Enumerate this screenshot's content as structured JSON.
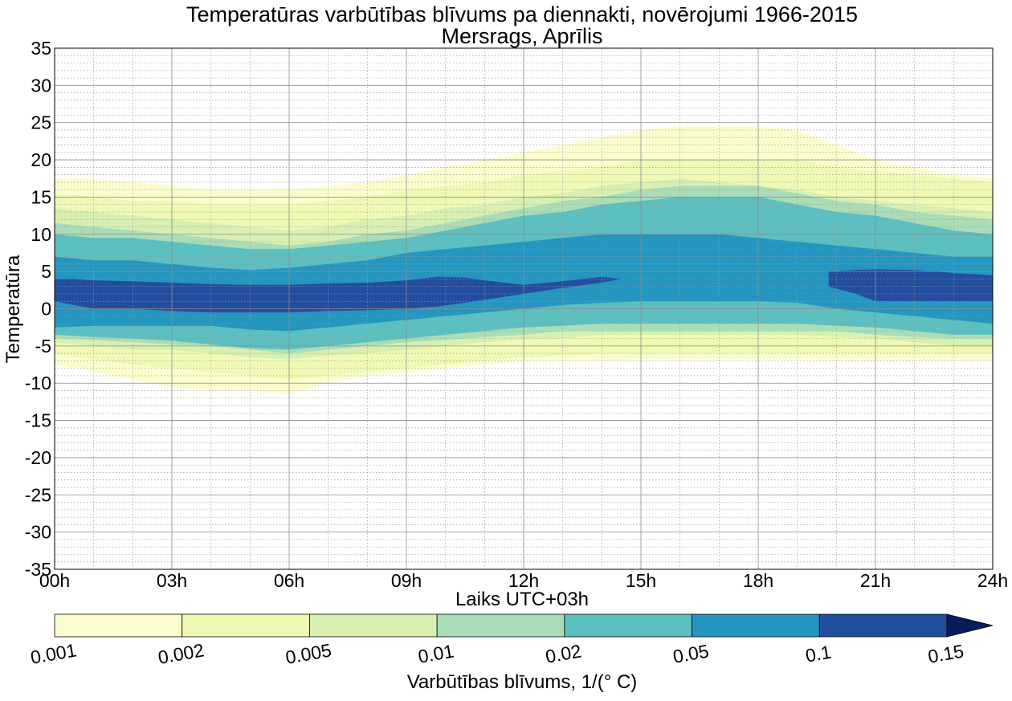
{
  "chart_data": {
    "type": "contour",
    "title": "Temperatūras varbūtības blīvums pa diennakti, novērojumi 1966-2015",
    "subtitle": "Mersrags, Aprīlis",
    "xlabel": "Laiks UTC+03h",
    "ylabel": "Temperatūra",
    "xlim": [
      0,
      24
    ],
    "ylim": [
      -35,
      35
    ],
    "x_ticks": [
      0,
      3,
      6,
      9,
      12,
      15,
      18,
      21,
      24
    ],
    "x_tick_labels": [
      "00h",
      "03h",
      "06h",
      "09h",
      "12h",
      "15h",
      "18h",
      "21h",
      "24h"
    ],
    "y_ticks": [
      -35,
      -30,
      -25,
      -20,
      -15,
      -10,
      -5,
      0,
      5,
      10,
      15,
      20,
      25,
      30,
      35
    ],
    "y_tick_labels": [
      "-35",
      "-30",
      "-25",
      "-20",
      "-15",
      "-10",
      "-5",
      "0",
      "5",
      "10",
      "15",
      "20",
      "25",
      "30",
      "35"
    ],
    "grid": "on",
    "colorbar": {
      "label": "Varbūtības blīvums, 1/($^\\circ$C)",
      "label_display": "Varbūtības blīvums, 1/(° C)",
      "levels": [
        0.001,
        0.002,
        0.005,
        0.01,
        0.02,
        0.05,
        0.1,
        0.15
      ],
      "tick_labels": [
        "0.001",
        "0.002",
        "0.005",
        "0.01",
        "0.02",
        "0.05",
        "0.1",
        "0.15"
      ],
      "colors": [
        "#fbfdcd",
        "#eff9b3",
        "#d7f0b1",
        "#a9ddb7",
        "#5cbfc0",
        "#2496c0",
        "#234ea0",
        "#081d58"
      ],
      "extend": "max"
    },
    "bands": [
      {
        "level": 0.001,
        "color": "#fbfdcd",
        "x": [
          0,
          1,
          2,
          3,
          4,
          5,
          6,
          7,
          8,
          9,
          10,
          11,
          12,
          13,
          14,
          15,
          16,
          17,
          18,
          19,
          20,
          21,
          22,
          23,
          24
        ],
        "upper": [
          17.5,
          17.5,
          17,
          16.5,
          16,
          16,
          16,
          16.5,
          17,
          18,
          19,
          20,
          21,
          22,
          23,
          24,
          24.5,
          24.5,
          24.5,
          24,
          22,
          20,
          19,
          18,
          17.5
        ],
        "lower": [
          -7.5,
          -8.5,
          -9.5,
          -10.5,
          -11,
          -11,
          -11.5,
          -10,
          -9,
          -8.5,
          -8,
          -7.5,
          -7,
          -7,
          -7,
          -6.8,
          -6.8,
          -6.8,
          -6.8,
          -6.8,
          -7,
          -7,
          -7,
          -7,
          -7
        ]
      },
      {
        "level": 0.002,
        "color": "#eff9b3",
        "x": [
          0,
          1,
          2,
          3,
          4,
          5,
          6,
          7,
          8,
          9,
          10,
          11,
          12,
          13,
          14,
          15,
          16,
          17,
          18,
          19,
          20,
          21,
          22,
          23,
          24
        ],
        "upper": [
          15.5,
          15,
          14.5,
          14.5,
          14,
          14,
          14,
          14.5,
          15,
          16,
          16.5,
          17,
          18,
          18.5,
          19,
          20,
          20,
          20,
          20,
          20,
          19,
          18.5,
          18,
          17.5,
          17
        ],
        "lower": [
          -6,
          -6.8,
          -7.5,
          -8,
          -8.5,
          -9,
          -9.5,
          -9,
          -8.5,
          -8,
          -7.5,
          -7,
          -6.5,
          -6.3,
          -6,
          -6,
          -6,
          -6,
          -6,
          -6,
          -6,
          -6,
          -6,
          -6,
          -6
        ]
      },
      {
        "level": 0.005,
        "color": "#d7f0b1",
        "x": [
          0,
          1,
          2,
          3,
          4,
          5,
          6,
          7,
          8,
          9,
          10,
          11,
          12,
          13,
          14,
          15,
          16,
          17,
          18,
          19,
          20,
          21,
          22,
          23,
          24
        ],
        "upper": [
          13.5,
          13,
          12.5,
          12,
          11.5,
          11,
          10.5,
          11,
          12,
          12.5,
          13.5,
          14,
          15,
          15.5,
          16.5,
          17,
          17.5,
          17,
          16.5,
          16,
          15,
          14.5,
          14,
          13.5,
          13
        ],
        "lower": [
          -4.5,
          -5,
          -5.5,
          -5.5,
          -6,
          -6.5,
          -6.8,
          -6.3,
          -6,
          -5.5,
          -5,
          -4.5,
          -4,
          -4,
          -3.5,
          -3.5,
          -3.5,
          -3.5,
          -3.5,
          -3.5,
          -3.8,
          -4,
          -4.5,
          -5,
          -5
        ]
      },
      {
        "level": 0.01,
        "color": "#a9ddb7",
        "x": [
          0,
          1,
          2,
          3,
          4,
          5,
          6,
          7,
          8,
          9,
          10,
          11,
          12,
          13,
          14,
          15,
          16,
          17,
          18,
          19,
          20,
          21,
          22,
          23,
          24
        ],
        "upper": [
          11.5,
          11,
          10.5,
          10,
          9.5,
          9,
          8.5,
          9,
          10,
          10.5,
          11.5,
          12.5,
          13.5,
          14.5,
          15,
          16,
          16.5,
          16.5,
          16.5,
          15.5,
          14.5,
          14,
          13,
          12.5,
          12
        ],
        "lower": [
          -4,
          -4.2,
          -4.5,
          -4.8,
          -5,
          -5.5,
          -6,
          -5.5,
          -5,
          -4.5,
          -4.2,
          -3.8,
          -3.5,
          -3,
          -3,
          -3,
          -3,
          -3,
          -3,
          -3,
          -3,
          -3.5,
          -3.8,
          -4,
          -4
        ]
      },
      {
        "level": 0.02,
        "color": "#5cbfc0",
        "x": [
          0,
          1,
          2,
          3,
          4,
          5,
          6,
          7,
          8,
          9,
          10,
          11,
          12,
          13,
          14,
          15,
          16,
          17,
          18,
          19,
          20,
          21,
          22,
          23,
          24
        ],
        "upper": [
          10,
          9.5,
          9.5,
          9,
          8.5,
          8,
          8,
          8.5,
          9,
          9.5,
          10.5,
          11.5,
          12.5,
          13,
          14,
          14.5,
          15,
          15,
          15,
          14,
          13,
          12.5,
          11.5,
          10.5,
          10
        ],
        "lower": [
          -3.5,
          -3.8,
          -4,
          -4.3,
          -4.8,
          -5.3,
          -5.5,
          -5,
          -4.5,
          -4,
          -3.5,
          -3,
          -2.5,
          -2.3,
          -2,
          -2,
          -2,
          -2,
          -2,
          -2,
          -2.3,
          -2.5,
          -3,
          -3.5,
          -3.5
        ]
      },
      {
        "level": 0.05,
        "color": "#2496c0",
        "x": [
          0,
          1,
          2,
          3,
          4,
          5,
          6,
          7,
          8,
          9,
          10,
          11,
          12,
          13,
          14,
          15,
          16,
          17,
          18,
          19,
          20,
          21,
          22,
          23,
          24
        ],
        "upper": [
          7,
          6.5,
          6.5,
          6,
          5.5,
          5.2,
          5.5,
          6,
          6.5,
          7.5,
          8,
          8.5,
          9,
          9.5,
          10,
          10,
          10,
          10,
          9.5,
          9,
          8.5,
          8,
          7.5,
          7,
          7
        ],
        "lower": [
          -2.5,
          -2.3,
          -2.3,
          -2.3,
          -2.3,
          -2.8,
          -3,
          -2.5,
          -2,
          -1.5,
          -1,
          -0.5,
          0,
          0.5,
          0.8,
          1,
          1,
          1,
          1,
          0.8,
          0,
          -0.5,
          -1,
          -1.5,
          -2
        ]
      },
      {
        "level": 0.1,
        "color": "#234ea0",
        "x": [
          0,
          0.5,
          1,
          2,
          3,
          4,
          5,
          6,
          7,
          8,
          9,
          9.8,
          10.5,
          11,
          12,
          13,
          14,
          14.5,
          15
        ],
        "upper": [
          4,
          4,
          3.8,
          3.7,
          3.5,
          3.3,
          3.2,
          3.2,
          3.4,
          3.5,
          3.8,
          4.3,
          4.2,
          3.8,
          3.2,
          3.7,
          4.3,
          4,
          4
        ],
        "lower": [
          1,
          0.5,
          0,
          0,
          -0.3,
          -0.5,
          -0.5,
          -0.5,
          -0.3,
          -0.2,
          0,
          0.3,
          0.8,
          1.2,
          2,
          2.8,
          3.5,
          4,
          4
        ]
      },
      {
        "level": 0.1,
        "color": "#234ea0",
        "x": [
          19.8,
          20.5,
          21,
          22,
          23,
          24
        ],
        "upper": [
          5,
          5.2,
          5.3,
          5.2,
          4.8,
          4.5
        ],
        "lower": [
          3,
          2,
          1,
          1,
          1,
          1
        ]
      }
    ]
  }
}
